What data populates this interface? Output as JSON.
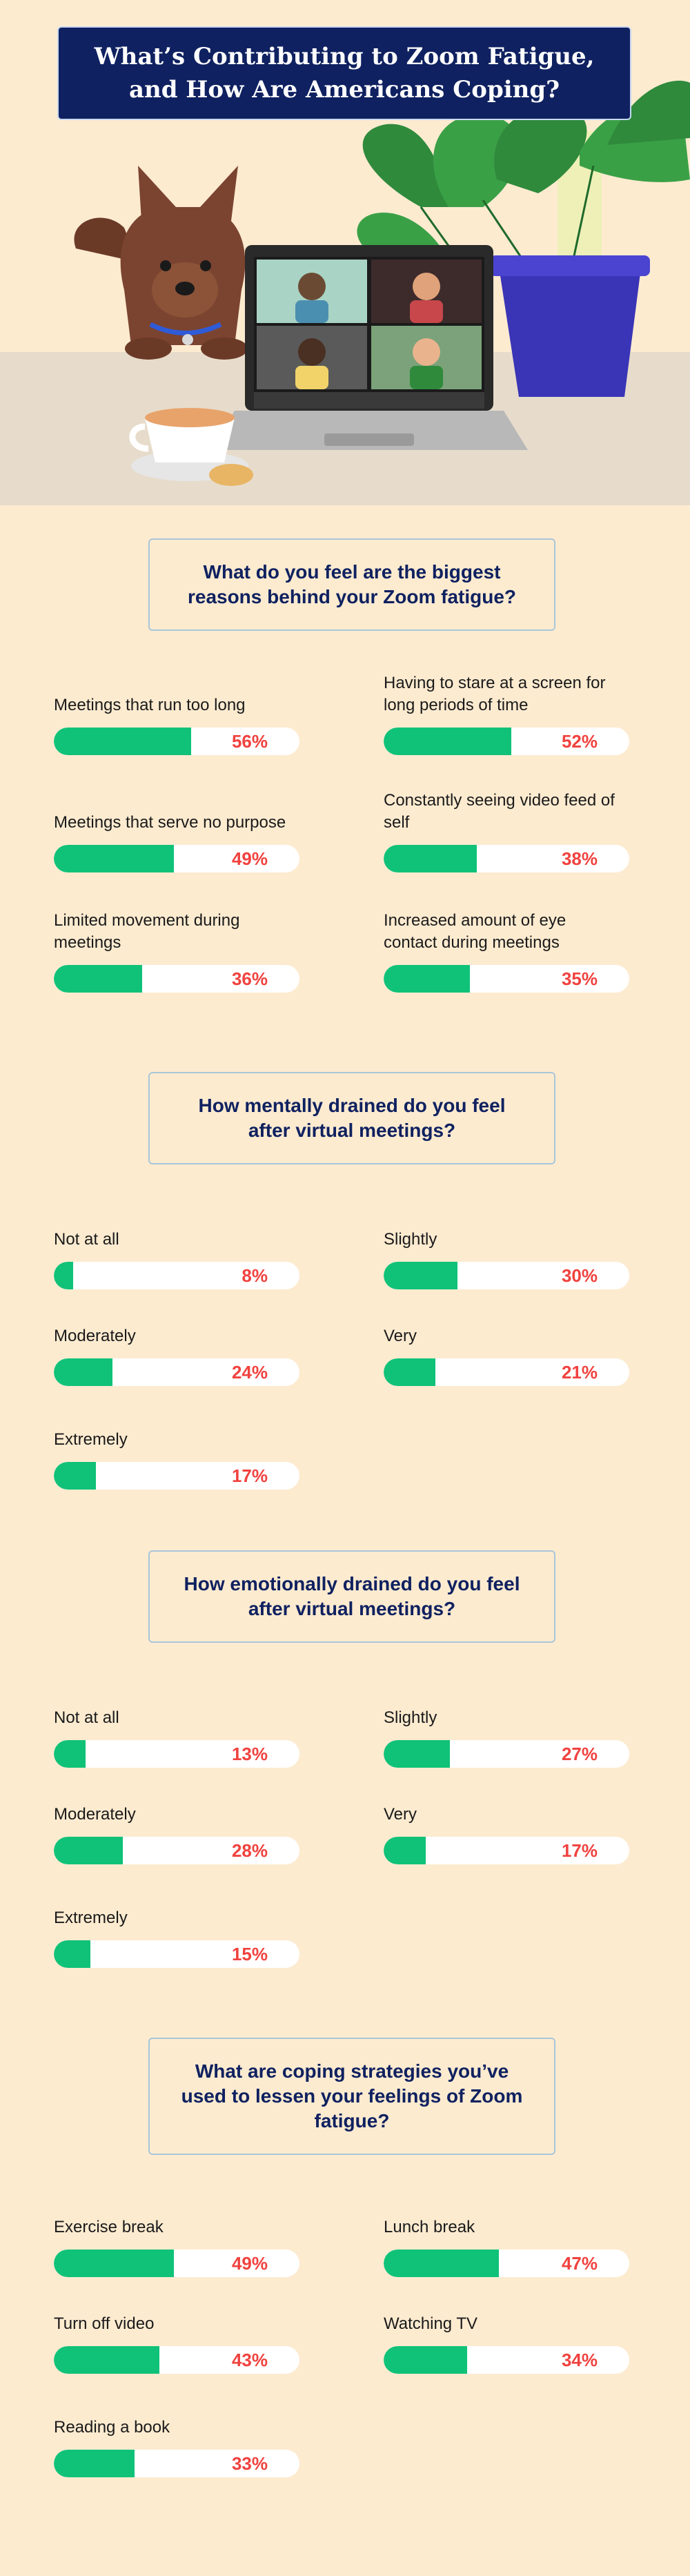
{
  "title": "What’s Contributing to Zoom Fatigue, and How Are Americans Coping?",
  "colors": {
    "background": "#fdebd0",
    "title_bg": "#0f2160",
    "bar_fill": "#10c278",
    "bar_track": "#ffffff",
    "percent_text": "#f0423f",
    "question_text": "#0f2160"
  },
  "hero": {
    "illustration": "dog-laptop-video-call-plant-teacup-icon"
  },
  "chart_data": [
    {
      "type": "bar",
      "title": "What do you feel are the biggest reasons behind your Zoom fatigue?",
      "unit": "%",
      "categories": [
        "Meetings that run too long",
        "Having to stare at a screen for long periods of time",
        "Meetings that serve no purpose",
        "Constantly seeing video feed of self",
        "Limited movement during meetings",
        "Increased amount of eye contact during meetings"
      ],
      "values": [
        56,
        52,
        49,
        38,
        36,
        35
      ],
      "labels": [
        "56%",
        "52%",
        "49%",
        "38%",
        "36%",
        "35%"
      ],
      "ylim": [
        0,
        100
      ]
    },
    {
      "type": "bar",
      "title": "How mentally drained do you feel after virtual meetings?",
      "unit": "%",
      "categories": [
        "Not at all",
        "Slightly",
        "Moderately",
        "Very",
        "Extremely"
      ],
      "values": [
        8,
        30,
        24,
        21,
        17
      ],
      "labels": [
        "8%",
        "30%",
        "24%",
        "21%",
        "17%"
      ],
      "ylim": [
        0,
        100
      ]
    },
    {
      "type": "bar",
      "title": "How emotionally drained do you feel after virtual meetings?",
      "unit": "%",
      "categories": [
        "Not at all",
        "Slightly",
        "Moderately",
        "Very",
        "Extremely"
      ],
      "values": [
        13,
        27,
        28,
        17,
        15
      ],
      "labels": [
        "13%",
        "27%",
        "28%",
        "17%",
        "15%"
      ],
      "ylim": [
        0,
        100
      ]
    },
    {
      "type": "bar",
      "title": "What are coping strategies you’ve used to lessen your feelings of Zoom fatigue?",
      "unit": "%",
      "categories": [
        "Exercise break",
        "Lunch break",
        "Turn off video",
        "Watching TV",
        "Reading a book"
      ],
      "values": [
        49,
        47,
        43,
        34,
        33
      ],
      "labels": [
        "49%",
        "47%",
        "43%",
        "34%",
        "33%"
      ],
      "ylim": [
        0,
        100
      ]
    }
  ]
}
